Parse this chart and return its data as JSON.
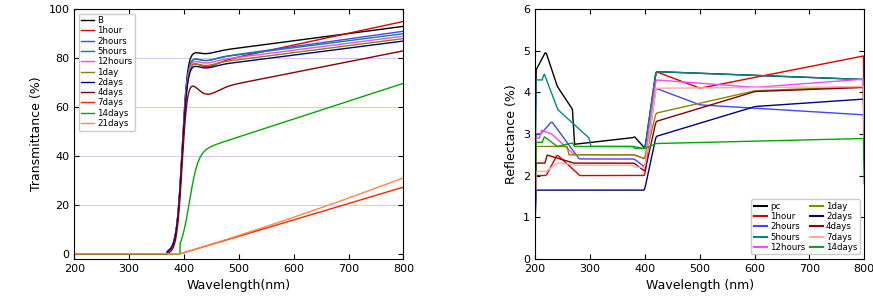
{
  "left_chart": {
    "xlabel": "Wavelength(nm)",
    "ylabel": "Transmittance (%)",
    "xlim": [
      200,
      800
    ],
    "ylim": [
      -2,
      100
    ],
    "yticks": [
      0,
      20,
      40,
      60,
      80,
      100
    ],
    "xticks": [
      200,
      300,
      400,
      500,
      600,
      700,
      800
    ],
    "grid_color": "#aaaaee",
    "legend": [
      "B",
      "1hour",
      "2hours",
      "5hours",
      "12hours",
      "1day",
      "2days",
      "4days",
      "7days",
      "14days",
      "21days"
    ],
    "colors": [
      "#000000",
      "#dd0000",
      "#4444ff",
      "#008888",
      "#ff44ff",
      "#888800",
      "#000088",
      "#880000",
      "#ff2200",
      "#00aa00",
      "#ff8844"
    ]
  },
  "right_chart": {
    "xlabel": "Wavelength (nm)",
    "ylabel": "Reflectance (%)",
    "xlim": [
      200,
      800
    ],
    "ylim": [
      0,
      6
    ],
    "yticks": [
      0,
      1,
      2,
      3,
      4,
      5,
      6
    ],
    "xticks": [
      200,
      300,
      400,
      500,
      600,
      700,
      800
    ],
    "legend_left": [
      "pc",
      "2hours",
      "12hours",
      "2days",
      "7days"
    ],
    "legend_right": [
      "1hour",
      "5hours",
      "1day",
      "4days",
      "14days"
    ],
    "colors": [
      "#000000",
      "#dd0000",
      "#4444ff",
      "#008888",
      "#ff44ff",
      "#888800",
      "#000088",
      "#880000",
      "#ffaaaa",
      "#00aa00"
    ]
  }
}
